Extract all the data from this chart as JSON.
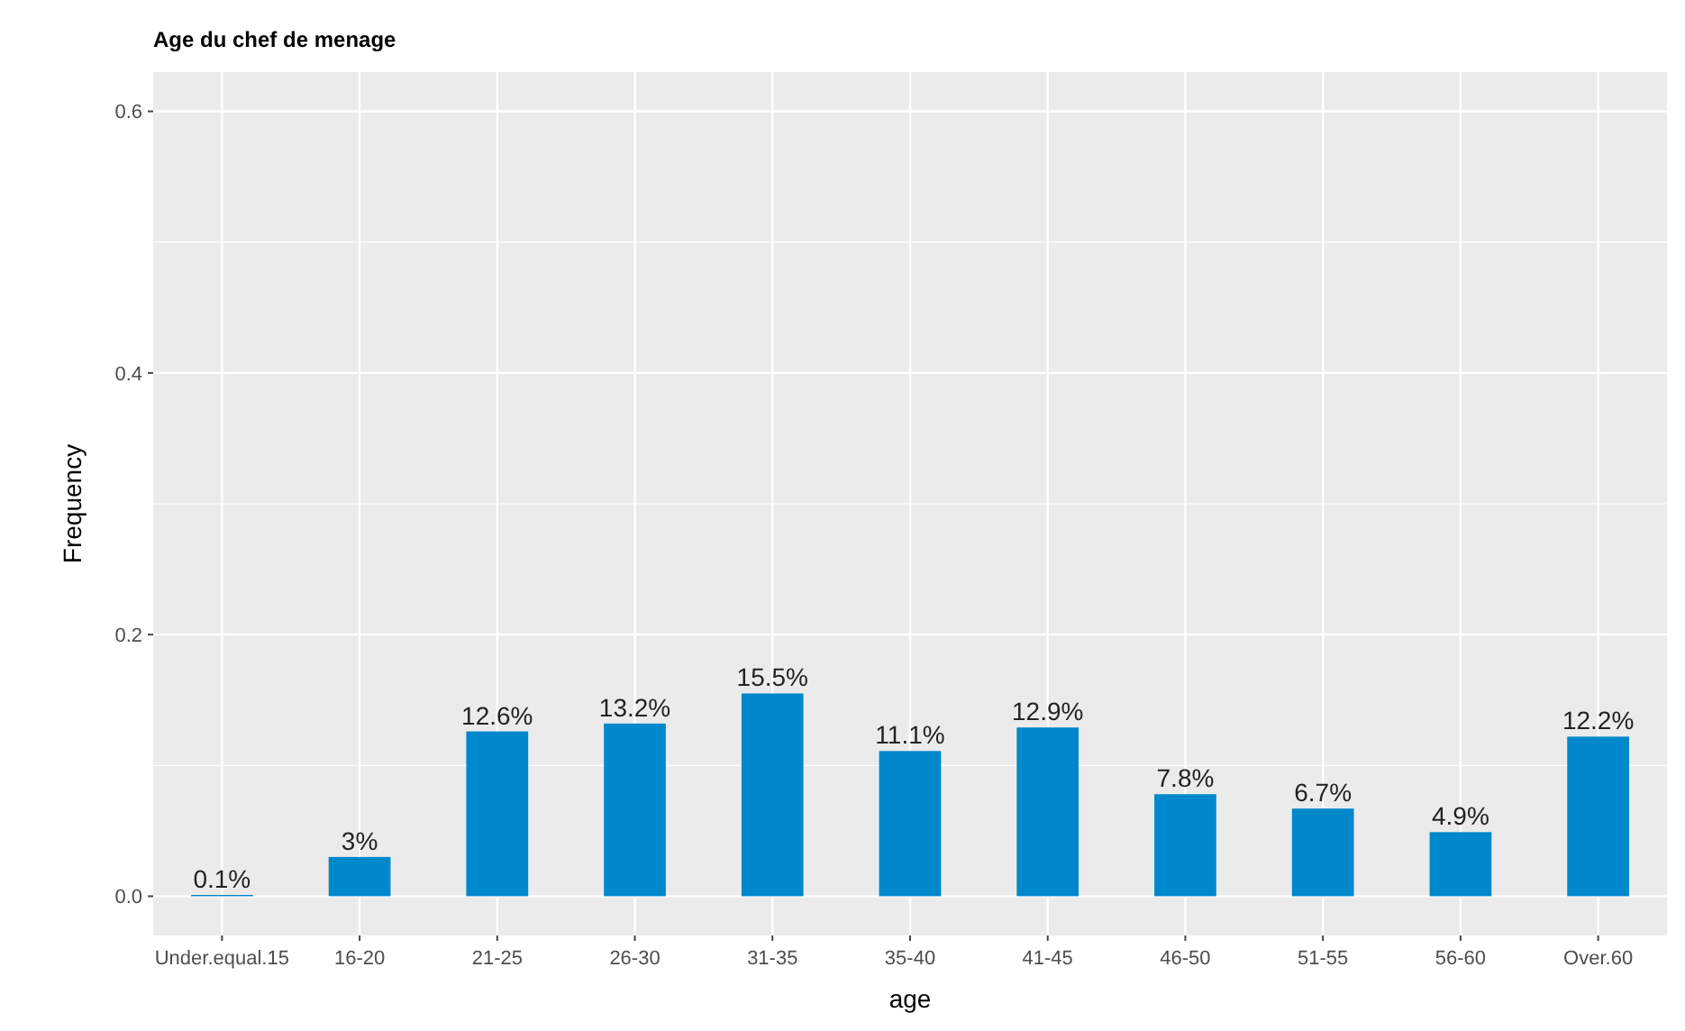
{
  "chart_data": {
    "type": "bar",
    "title": "Age du chef de menage",
    "xlabel": "age",
    "ylabel": "Frequency",
    "categories": [
      "Under.equal.15",
      "16-20",
      "21-25",
      "26-30",
      "31-35",
      "35-40",
      "41-45",
      "46-50",
      "51-55",
      "56-60",
      "Over.60"
    ],
    "values": [
      0.001,
      0.03,
      0.126,
      0.132,
      0.155,
      0.111,
      0.129,
      0.078,
      0.067,
      0.049,
      0.122
    ],
    "value_labels": [
      "0.1%",
      "3%",
      "12.6%",
      "13.2%",
      "15.5%",
      "11.1%",
      "12.9%",
      "7.8%",
      "6.7%",
      "4.9%",
      "12.2%"
    ],
    "color": "#0088cc",
    "ylim": [
      -0.03,
      0.63
    ],
    "yticks": [
      {
        "value": 0,
        "label": "0.0"
      },
      {
        "value": 0.2,
        "label": "0.2"
      },
      {
        "value": 0.4,
        "label": "0.4"
      },
      {
        "value": 0.6,
        "label": "0.6"
      }
    ],
    "grid": true
  }
}
